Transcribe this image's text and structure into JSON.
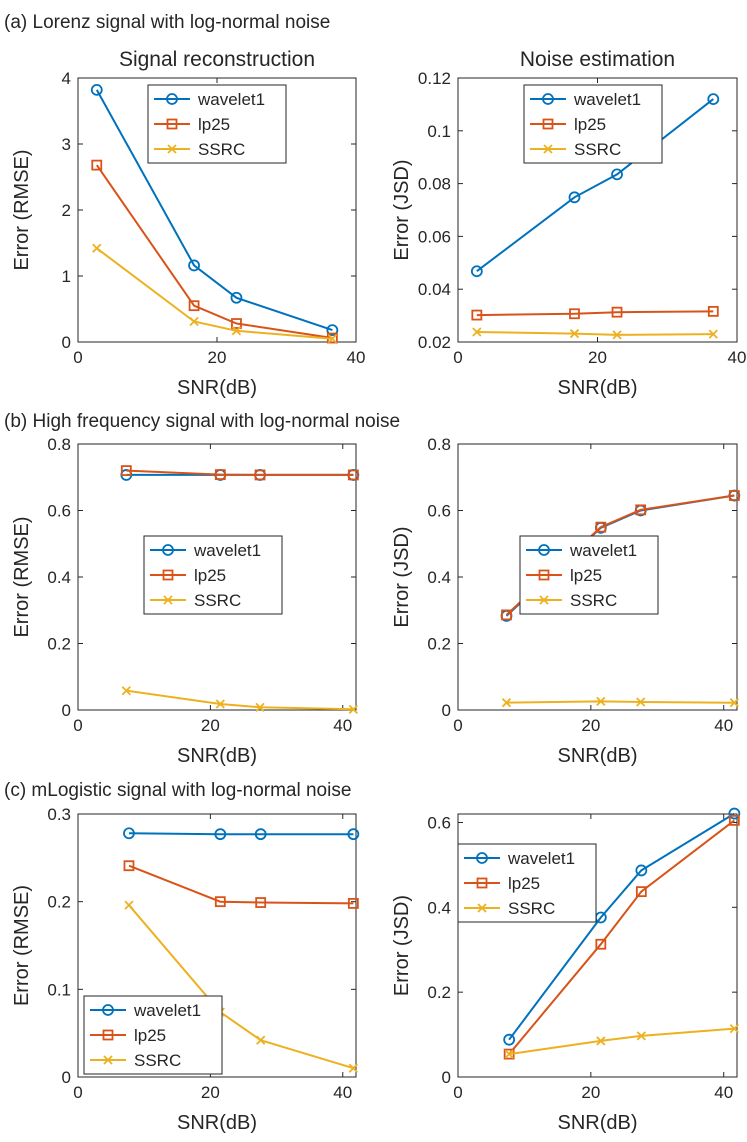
{
  "sections": [
    {
      "title": "(a) Lorenz signal with log-normal noise",
      "charts": [
        {
          "type": "line",
          "title": "Signal reconstruction",
          "xlabel": "SNR(dB)",
          "ylabel": "Error (RMSE)",
          "xlim": [
            0,
            40
          ],
          "ylim": [
            0,
            4
          ],
          "xticks": [
            "0",
            "20",
            "40"
          ],
          "yticks": [
            "0",
            "1",
            "2",
            "3",
            "4"
          ],
          "legend": "top-right",
          "series": [
            {
              "name": "wavelet1",
              "marker": "circle",
              "x": [
                2.7,
                16.7,
                22.8,
                36.6
              ],
              "y": [
                3.82,
                1.16,
                0.67,
                0.18
              ]
            },
            {
              "name": "lp25",
              "marker": "square",
              "x": [
                2.7,
                16.7,
                22.8,
                36.6
              ],
              "y": [
                2.68,
                0.55,
                0.28,
                0.06
              ]
            },
            {
              "name": "SSRC",
              "marker": "x",
              "x": [
                2.7,
                16.7,
                22.8,
                36.6
              ],
              "y": [
                1.42,
                0.31,
                0.17,
                0.05
              ]
            }
          ]
        },
        {
          "type": "line",
          "title": "Noise estimation",
          "xlabel": "SNR(dB)",
          "ylabel": "Error (JSD)",
          "xlim": [
            0,
            40
          ],
          "ylim": [
            0.02,
            0.12
          ],
          "xticks": [
            "0",
            "20",
            "40"
          ],
          "yticks": [
            "0.02",
            "0.04",
            "0.06",
            "0.08",
            "0.1",
            "0.12"
          ],
          "legend": "top",
          "series": [
            {
              "name": "wavelet1",
              "marker": "circle",
              "x": [
                2.7,
                16.7,
                22.8,
                36.6
              ],
              "y": [
                0.0468,
                0.0748,
                0.0835,
                0.112
              ]
            },
            {
              "name": "lp25",
              "marker": "square",
              "x": [
                2.7,
                16.7,
                22.8,
                36.6
              ],
              "y": [
                0.0302,
                0.0307,
                0.0313,
                0.0316
              ]
            },
            {
              "name": "SSRC",
              "marker": "x",
              "x": [
                2.7,
                16.7,
                22.8,
                36.6
              ],
              "y": [
                0.0238,
                0.0232,
                0.0227,
                0.023
              ]
            }
          ]
        }
      ]
    },
    {
      "title": "(b) High frequency signal with log-normal noise",
      "charts": [
        {
          "type": "line",
          "title": "",
          "xlabel": "SNR(dB)",
          "ylabel": "Error (RMSE)",
          "xlim": [
            0,
            42
          ],
          "ylim": [
            0,
            0.8
          ],
          "xticks": [
            "0",
            "20",
            "40"
          ],
          "yticks": [
            "0",
            "0.2",
            "0.4",
            "0.6",
            "0.8"
          ],
          "legend": "center",
          "series": [
            {
              "name": "wavelet1",
              "marker": "circle",
              "x": [
                7.3,
                21.5,
                27.5,
                41.6
              ],
              "y": [
                0.707,
                0.707,
                0.707,
                0.707
              ]
            },
            {
              "name": "lp25",
              "marker": "square",
              "x": [
                7.3,
                21.5,
                27.5,
                41.6
              ],
              "y": [
                0.72,
                0.708,
                0.707,
                0.707
              ]
            },
            {
              "name": "SSRC",
              "marker": "x",
              "x": [
                7.3,
                21.5,
                27.5,
                41.6
              ],
              "y": [
                0.058,
                0.018,
                0.008,
                0.002
              ]
            }
          ]
        },
        {
          "type": "line",
          "title": "",
          "xlabel": "SNR(dB)",
          "ylabel": "Error (JSD)",
          "xlim": [
            0,
            42
          ],
          "ylim": [
            0,
            0.8
          ],
          "xticks": [
            "0",
            "20",
            "40"
          ],
          "yticks": [
            "0",
            "0.2",
            "0.4",
            "0.6",
            "0.8"
          ],
          "legend": "center",
          "series": [
            {
              "name": "wavelet1",
              "marker": "circle",
              "x": [
                7.3,
                21.5,
                27.5,
                41.6
              ],
              "y": [
                0.283,
                0.548,
                0.6,
                0.645
              ]
            },
            {
              "name": "lp25",
              "marker": "square",
              "x": [
                7.3,
                21.5,
                27.5,
                41.6
              ],
              "y": [
                0.286,
                0.55,
                0.602,
                0.645
              ]
            },
            {
              "name": "SSRC",
              "marker": "x",
              "x": [
                7.3,
                21.5,
                27.5,
                41.6
              ],
              "y": [
                0.022,
                0.026,
                0.024,
                0.022
              ]
            }
          ]
        }
      ]
    },
    {
      "title": "(c) mLogistic signal with log-normal noise",
      "charts": [
        {
          "type": "line",
          "title": "",
          "xlabel": "SNR(dB)",
          "ylabel": "Error (RMSE)",
          "xlim": [
            0,
            42
          ],
          "ylim": [
            0,
            0.3
          ],
          "xticks": [
            "0",
            "20",
            "40"
          ],
          "yticks": [
            "0",
            "0.1",
            "0.2",
            "0.3"
          ],
          "legend": "bottom-left",
          "series": [
            {
              "name": "wavelet1",
              "marker": "circle",
              "x": [
                7.7,
                21.5,
                27.6,
                41.6
              ],
              "y": [
                0.278,
                0.277,
                0.277,
                0.277
              ]
            },
            {
              "name": "lp25",
              "marker": "square",
              "x": [
                7.7,
                21.5,
                27.6,
                41.6
              ],
              "y": [
                0.241,
                0.2,
                0.199,
                0.198
              ]
            },
            {
              "name": "SSRC",
              "marker": "x",
              "x": [
                7.7,
                21.5,
                27.6,
                41.6
              ],
              "y": [
                0.196,
                0.074,
                0.042,
                0.01
              ]
            }
          ]
        },
        {
          "type": "line",
          "title": "",
          "xlabel": "SNR(dB)",
          "ylabel": "Error (JSD)",
          "xlim": [
            0,
            42
          ],
          "ylim": [
            0,
            0.62
          ],
          "xticks": [
            "0",
            "20",
            "40"
          ],
          "yticks": [
            "0",
            "0.2",
            "0.4",
            "0.6"
          ],
          "legend": "top-left",
          "series": [
            {
              "name": "wavelet1",
              "marker": "circle",
              "x": [
                7.7,
                21.5,
                27.6,
                41.6
              ],
              "y": [
                0.088,
                0.376,
                0.487,
                0.621
              ]
            },
            {
              "name": "lp25",
              "marker": "square",
              "x": [
                7.7,
                21.5,
                27.6,
                41.6
              ],
              "y": [
                0.054,
                0.313,
                0.437,
                0.605
              ]
            },
            {
              "name": "SSRC",
              "marker": "x",
              "x": [
                7.7,
                21.5,
                27.6,
                41.6
              ],
              "y": [
                0.054,
                0.085,
                0.097,
                0.114
              ]
            }
          ]
        }
      ]
    }
  ],
  "colors": {
    "wavelet1": "#0072BD",
    "lp25": "#D95319",
    "SSRC": "#EDB120",
    "axis": "#262626"
  }
}
